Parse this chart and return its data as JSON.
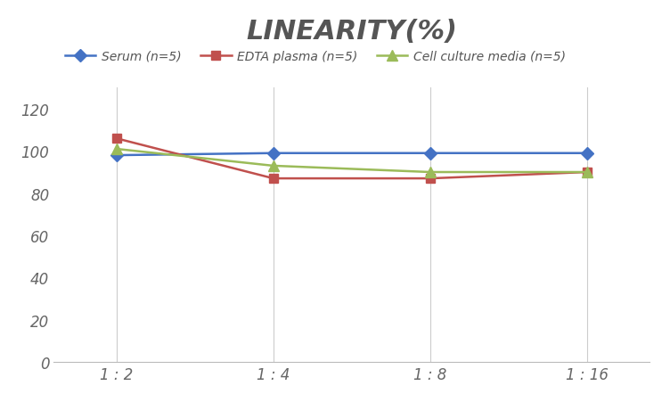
{
  "title": "LINEARITY(%)",
  "x_labels": [
    "1 : 2",
    "1 : 4",
    "1 : 8",
    "1 : 16"
  ],
  "x_positions": [
    0,
    1,
    2,
    3
  ],
  "series": [
    {
      "label": "Serum (n=5)",
      "values": [
        98,
        99,
        99,
        99
      ],
      "color": "#4472C4",
      "marker": "D",
      "markersize": 7,
      "linewidth": 1.8
    },
    {
      "label": "EDTA plasma (n=5)",
      "values": [
        106,
        87,
        87,
        90
      ],
      "color": "#C0504D",
      "marker": "s",
      "markersize": 7,
      "linewidth": 1.8
    },
    {
      "label": "Cell culture media (n=5)",
      "values": [
        101,
        93,
        90,
        90
      ],
      "color": "#9BBB59",
      "marker": "^",
      "markersize": 8,
      "linewidth": 1.8
    }
  ],
  "ylim": [
    0,
    130
  ],
  "yticks": [
    0,
    20,
    40,
    60,
    80,
    100,
    120
  ],
  "grid_color": "#CCCCCC",
  "background_color": "#FFFFFF",
  "title_fontsize": 22,
  "title_fontstyle": "italic",
  "title_fontweight": "bold",
  "legend_fontsize": 10,
  "tick_fontsize": 12,
  "tick_color": "#666666"
}
